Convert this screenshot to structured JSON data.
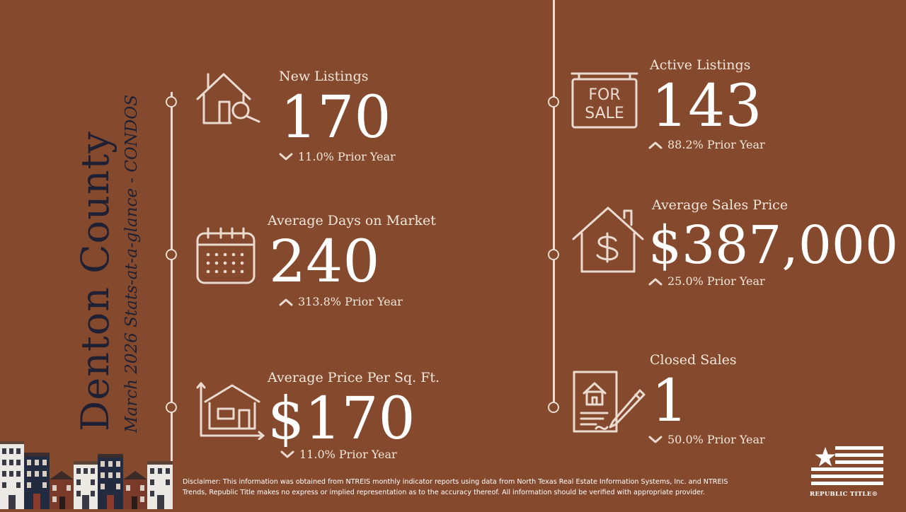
{
  "title": {
    "county": "Denton County",
    "subtitle": "March 2026 Stats-at-a-glance - CONDOS"
  },
  "stats": {
    "new_listings": {
      "label": "New Listings",
      "value": "170",
      "change": "11.0% Prior Year",
      "direction": "down",
      "icon": "house-search-icon"
    },
    "avg_days": {
      "label": "Average Days on Market",
      "value": "240",
      "change": "313.8% Prior Year",
      "direction": "up",
      "icon": "calendar-icon"
    },
    "price_sqft": {
      "label": "Average Price Per Sq. Ft.",
      "value": "$170",
      "change": "11.0% Prior Year",
      "direction": "down",
      "icon": "house-measure-icon"
    },
    "active_listings": {
      "label": "Active Listings",
      "value": "143",
      "change": "88.2% Prior Year",
      "direction": "up",
      "icon": "for-sale-sign-icon"
    },
    "avg_price": {
      "label": "Average Sales Price",
      "value": "$387,000",
      "change": "25.0% Prior Year",
      "direction": "up",
      "icon": "house-dollar-icon"
    },
    "closed_sales": {
      "label": "Closed Sales",
      "value": "1",
      "change": "50.0% Prior Year",
      "direction": "down",
      "icon": "contract-sign-icon"
    }
  },
  "for_sale_sign": {
    "line1": "FOR",
    "line2": "SALE"
  },
  "disclaimer": "Disclaimer: This information was obtained from NTREIS monthly indicator reports using data from North Texas Real Estate Information Systems, Inc. and NTREIS Trends, Republic Title makes no express or implied representation as to the accuracy thereof. All information should be verified with appropriate provider.",
  "logo": {
    "text": "REPUBLIC TITLE®"
  },
  "colors": {
    "background": "#854a2e",
    "title": "#1f2033",
    "text": "#f1e6da",
    "value": "#ffffff",
    "line": "#eadbd0"
  }
}
